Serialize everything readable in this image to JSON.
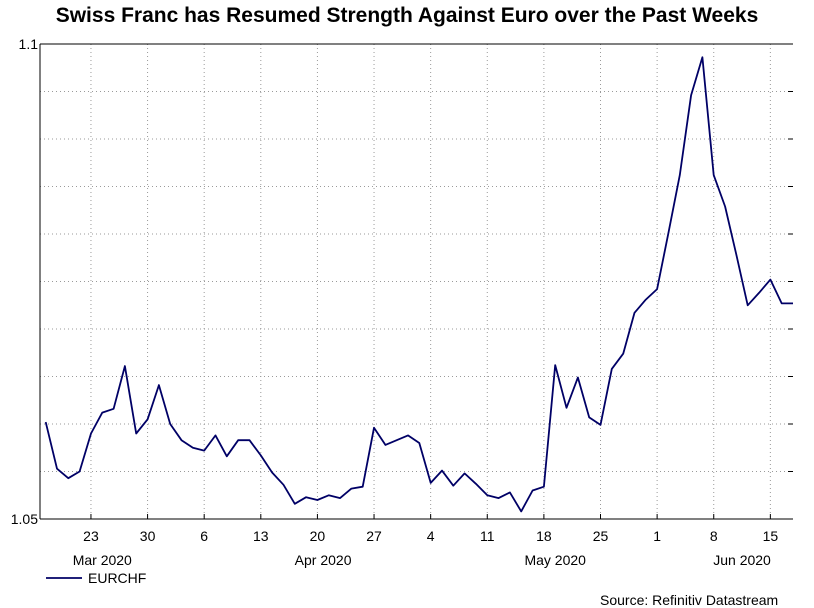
{
  "chart_data": {
    "type": "line",
    "title": "Swiss Franc has Resumed Strength Against Euro over the Past Weeks",
    "xlabel": "",
    "ylabel": "",
    "ylim": [
      1.05,
      1.1
    ],
    "y_tick_labels": [
      "1.1",
      "1.05"
    ],
    "grid": true,
    "x_day_ticks": [
      {
        "label": "23",
        "index": 4
      },
      {
        "label": "30",
        "index": 9
      },
      {
        "label": "6",
        "index": 14
      },
      {
        "label": "13",
        "index": 19
      },
      {
        "label": "20",
        "index": 24
      },
      {
        "label": "27",
        "index": 29
      },
      {
        "label": "4",
        "index": 34
      },
      {
        "label": "11",
        "index": 39
      },
      {
        "label": "18",
        "index": 44
      },
      {
        "label": "25",
        "index": 49
      },
      {
        "label": "1",
        "index": 54
      },
      {
        "label": "8",
        "index": 59
      },
      {
        "label": "15",
        "index": 64
      }
    ],
    "x_month_labels": [
      {
        "label": "Mar 2020",
        "index": 5
      },
      {
        "label": "Apr 2020",
        "index": 24.5
      },
      {
        "label": "May 2020",
        "index": 45
      },
      {
        "label": "Jun 2020",
        "index": 61.5
      }
    ],
    "x_range": [
      -0.5,
      66
    ],
    "series": [
      {
        "name": "EURCHF",
        "color": "#000066",
        "values": [
          1.0602,
          1.0553,
          1.0543,
          1.055,
          1.059,
          1.0612,
          1.0616,
          1.0661,
          1.059,
          1.0605,
          1.0641,
          1.06,
          1.0583,
          1.0575,
          1.0572,
          1.0588,
          1.0566,
          1.0583,
          1.0583,
          1.0567,
          1.0549,
          1.0536,
          1.0516,
          1.0523,
          1.052,
          1.0525,
          1.0522,
          1.0532,
          1.0534,
          1.0596,
          1.0578,
          1.0583,
          1.0588,
          1.058,
          1.0538,
          1.0551,
          1.0535,
          1.0548,
          1.0537,
          1.0525,
          1.0522,
          1.0528,
          1.0508,
          1.053,
          1.0534,
          1.0662,
          1.0617,
          1.0649,
          1.0607,
          1.0599,
          1.0658,
          1.0674,
          1.0717,
          1.0731,
          1.0742,
          1.0801,
          1.0862,
          1.0946,
          1.0986,
          1.0862,
          1.0829,
          1.0778,
          1.0725,
          1.0738,
          1.0752,
          1.0727,
          1.0727
        ]
      }
    ]
  },
  "legend": {
    "label": "EURCHF"
  },
  "source": "Source: Refinitiv Datastream"
}
